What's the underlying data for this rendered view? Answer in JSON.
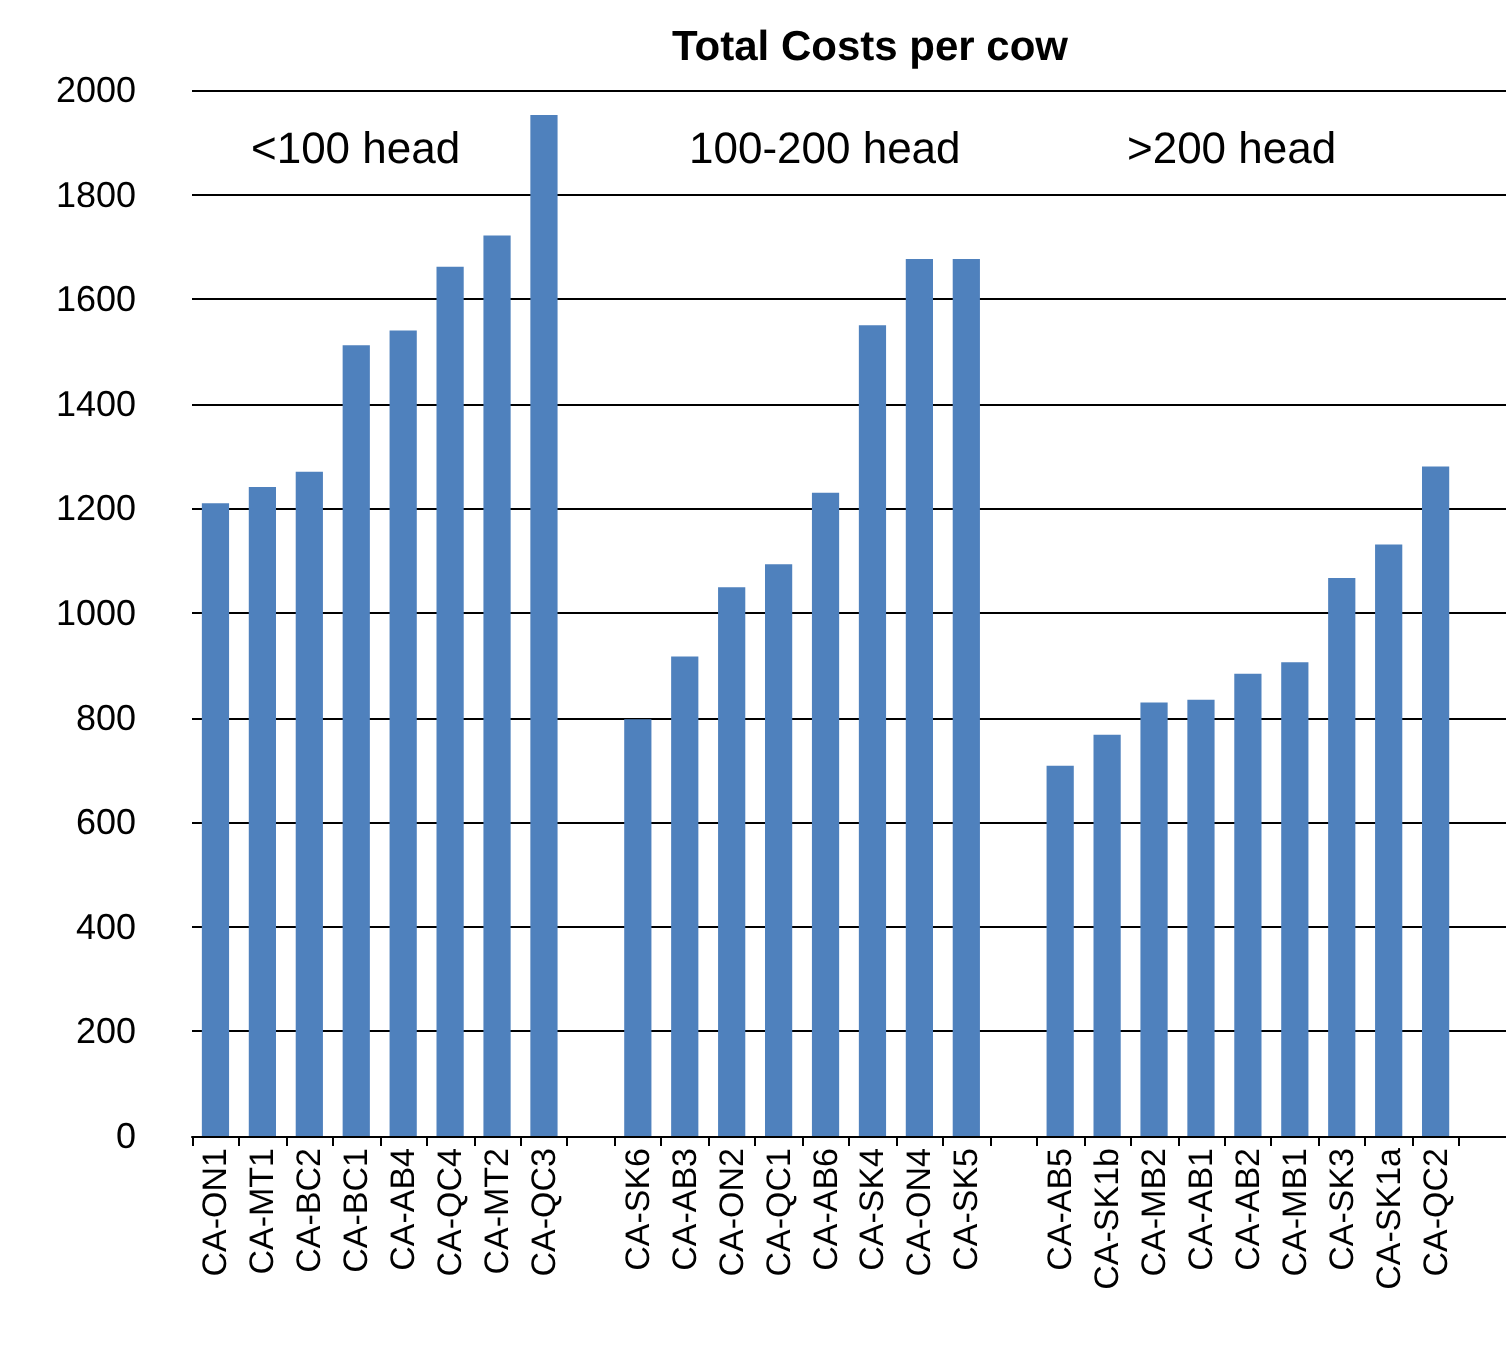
{
  "chart_data": {
    "type": "bar",
    "title": "Total Costs per cow",
    "categories": [
      "CA-ON1",
      "CA-MT1",
      "CA-BC2",
      "CA-BC1",
      "CA-AB4",
      "CA-QC4",
      "CA-MT2",
      "CA-QC3",
      null,
      "CA-SK6",
      "CA-AB3",
      "CA-ON2",
      "CA-QC1",
      "CA-AB6",
      "CA-SK4",
      "CA-ON4",
      "CA-SK5",
      null,
      "CA-AB5",
      "CA-SK1b",
      "CA-MB2",
      "CA-AB1",
      "CA-AB2",
      "CA-MB1",
      "CA-SK3",
      "CA-SK1a",
      "CA-QC2",
      null
    ],
    "values": [
      1210,
      1241,
      1270,
      1512,
      1540,
      1662,
      1722,
      1952,
      null,
      797,
      917,
      1049,
      1093,
      1230,
      1550,
      1677,
      1677,
      null,
      708,
      767,
      829,
      834,
      884,
      906,
      1067,
      1131,
      1280,
      null
    ],
    "color": "#4f81bd",
    "ylim": [
      0,
      2000
    ],
    "yticks": [
      0,
      200,
      400,
      600,
      800,
      1000,
      1200,
      1400,
      1600,
      1800,
      2000
    ],
    "grid": "y",
    "annotations": [
      "<100 head",
      "100-200 head",
      ">200 head"
    ]
  }
}
